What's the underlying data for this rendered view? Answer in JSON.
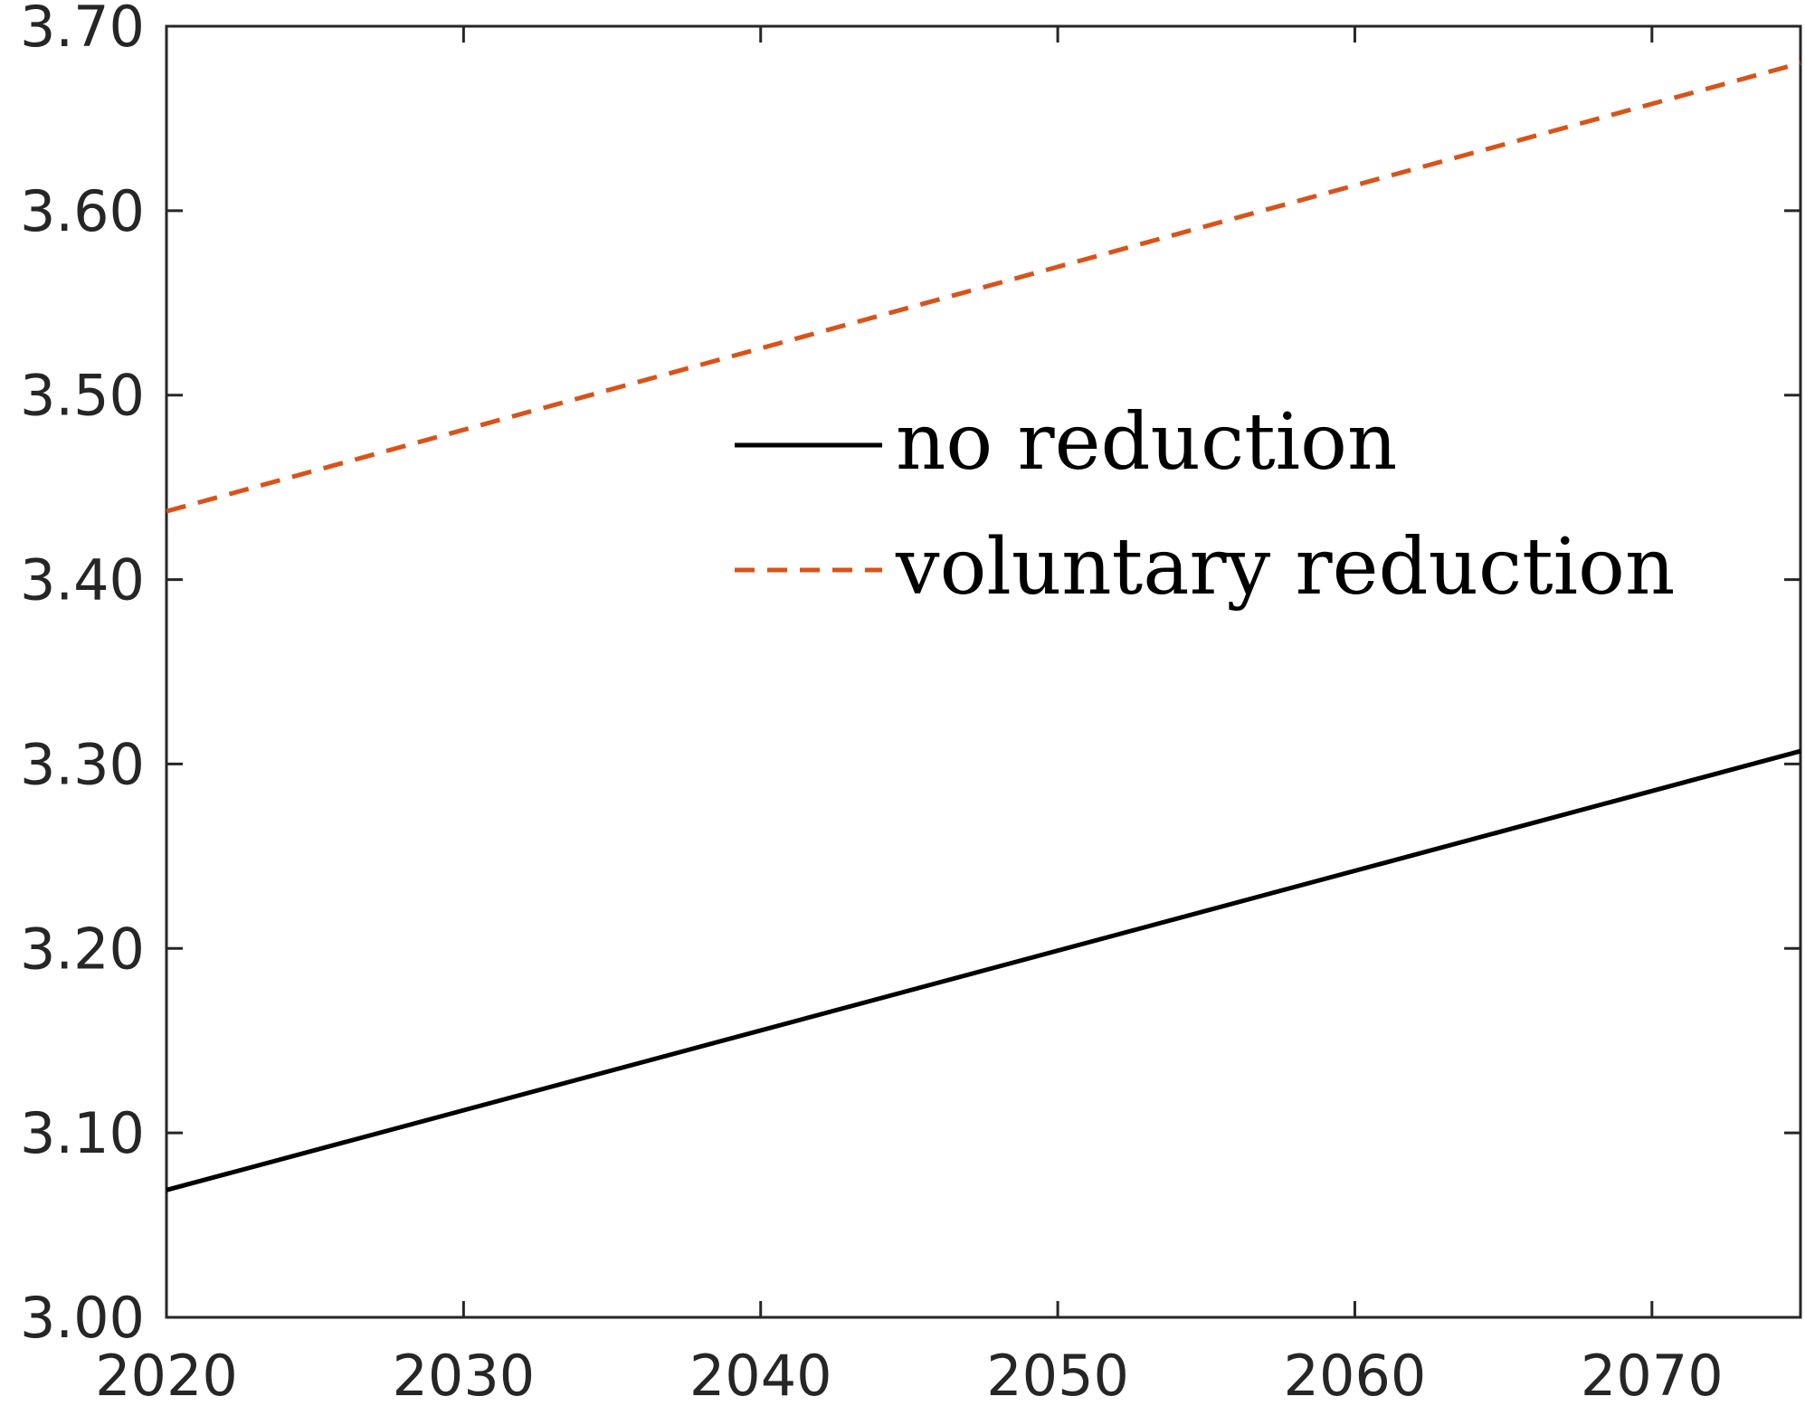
{
  "chart_data": {
    "type": "line",
    "title": "",
    "xlabel": "",
    "ylabel": "",
    "xlim": [
      2020,
      2075
    ],
    "ylim": [
      3.0,
      3.7
    ],
    "xticks": [
      2020,
      2030,
      2040,
      2050,
      2060,
      2070
    ],
    "xtick_labels": [
      "2020",
      "2030",
      "2040",
      "2050",
      "2060",
      "2070"
    ],
    "yticks": [
      3.0,
      3.1,
      3.2,
      3.3,
      3.4,
      3.5,
      3.6,
      3.7
    ],
    "ytick_labels": [
      "3.00",
      "3.10",
      "3.20",
      "3.30",
      "3.40",
      "3.50",
      "3.60",
      "3.70"
    ],
    "grid": false,
    "legend_position": "center-right",
    "series": [
      {
        "name": "no reduction",
        "style": "solid",
        "color": "#000000",
        "x": [
          2020,
          2075
        ],
        "y": [
          3.069,
          3.307
        ]
      },
      {
        "name": "voluntary reduction",
        "style": "dashed",
        "color": "#D95319",
        "x": [
          2020,
          2075
        ],
        "y": [
          3.437,
          3.68
        ]
      }
    ]
  }
}
